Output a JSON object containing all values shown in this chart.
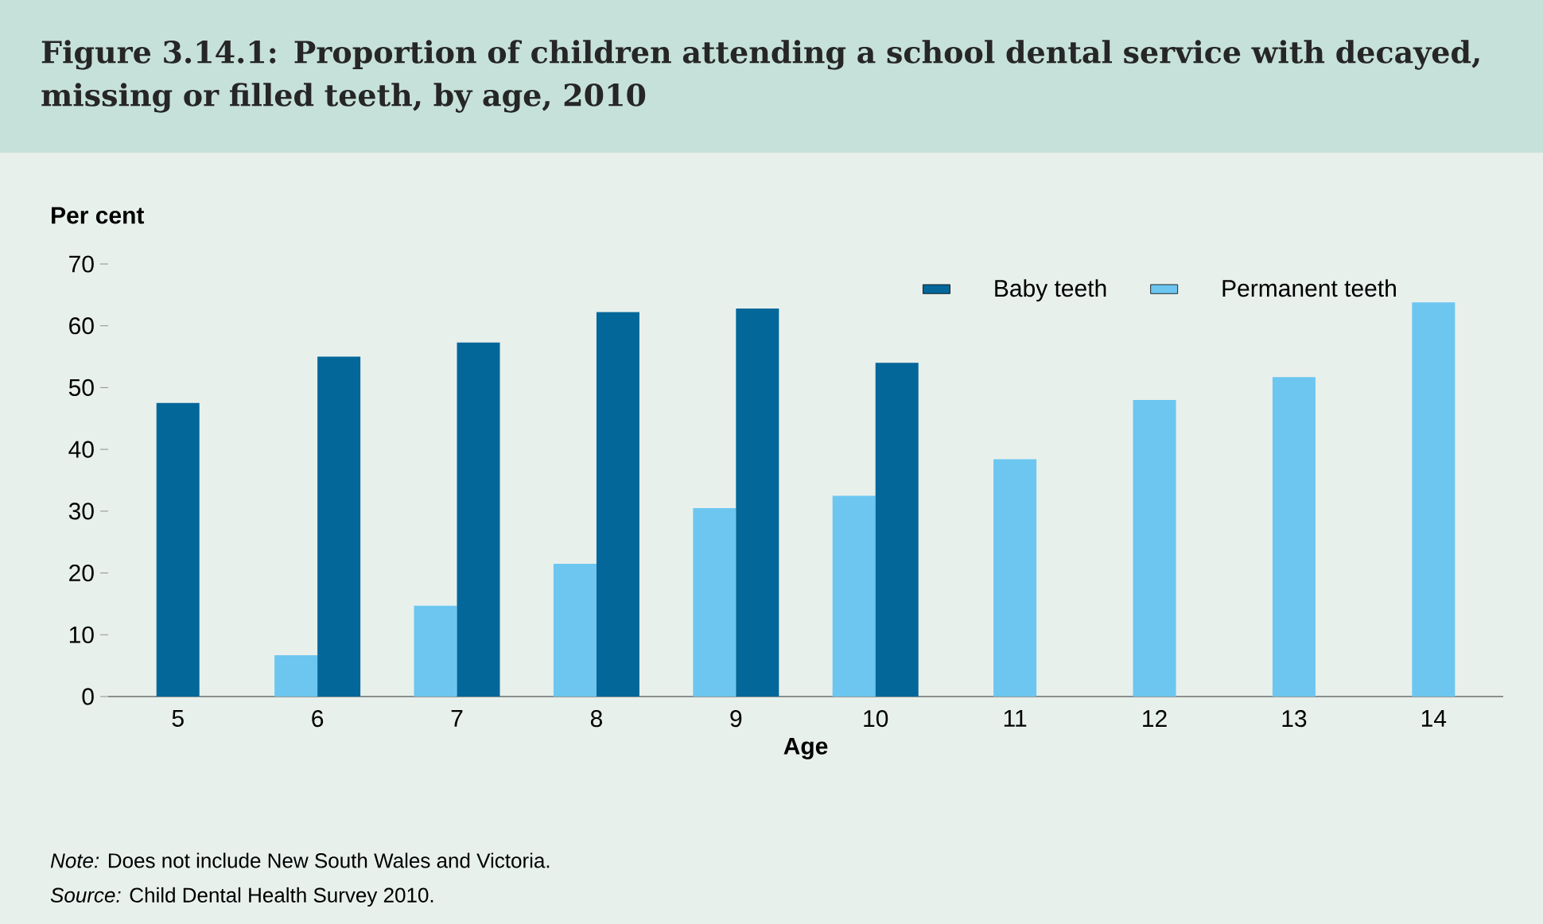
{
  "chart_data": {
    "type": "bar",
    "title": "Figure 3.14.1: Proportion of children attending a school dental service with decayed, missing or filled teeth, by age, 2010",
    "ylabel": "Per cent",
    "xlabel": "Age",
    "categories": [
      "5",
      "6",
      "7",
      "8",
      "9",
      "10",
      "11",
      "12",
      "13",
      "14"
    ],
    "series": [
      {
        "name": "Permanent teeth",
        "color": "#6cc6f0",
        "values": [
          null,
          6.7,
          14.7,
          21.5,
          30.5,
          32.5,
          38.4,
          48,
          51.7,
          63.8
        ]
      },
      {
        "name": "Baby teeth",
        "color": "#03679a",
        "values": [
          47.5,
          55,
          57.3,
          62.2,
          62.8,
          54,
          null,
          null,
          null,
          null
        ]
      }
    ],
    "ylim": [
      0,
      70
    ],
    "yticks": [
      0,
      10,
      20,
      30,
      40,
      50,
      60,
      70
    ],
    "legend": "top right",
    "annotations": [
      "*Note:* Does not include New South Wales and Victoria.",
      "*Source:* Child Dental Health Survey 2010."
    ]
  }
}
